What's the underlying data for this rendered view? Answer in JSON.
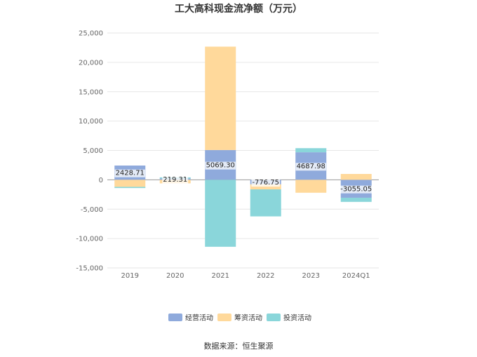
{
  "chart_data": {
    "type": "bar",
    "stacked": true,
    "title": "工大高科现金流净额（万元）",
    "categories": [
      "2019",
      "2020",
      "2021",
      "2022",
      "2023",
      "2024Q1"
    ],
    "series": [
      {
        "name": "经营活动",
        "color": "#8faadc",
        "values": [
          2428.71,
          219.31,
          5069.3,
          -776.75,
          4687.98,
          -3055.05
        ]
      },
      {
        "name": "筹资活动",
        "color": "#ffd99b",
        "values": [
          -1200,
          -600,
          17600,
          -850,
          -2200,
          1000
        ]
      },
      {
        "name": "投资活动",
        "color": "#8ad6da",
        "values": [
          -200,
          200,
          -11400,
          -4600,
          700,
          -700
        ]
      }
    ],
    "data_labels": [
      "2428.71",
      "219.31",
      "5069.30",
      "-776.75",
      "4687.98",
      "-3055.05"
    ],
    "y_ticks": [
      "25,000",
      "20,000",
      "15,000",
      "10,000",
      "5,000",
      "0",
      "-5,000",
      "-10,000",
      "-15,000"
    ],
    "y_tick_values": [
      25000,
      20000,
      15000,
      10000,
      5000,
      0,
      -5000,
      -10000,
      -15000
    ],
    "ylim": [
      -15000,
      25000
    ],
    "grid": true,
    "legend_position": "bottom"
  },
  "source": "数据来源：恒生聚源"
}
